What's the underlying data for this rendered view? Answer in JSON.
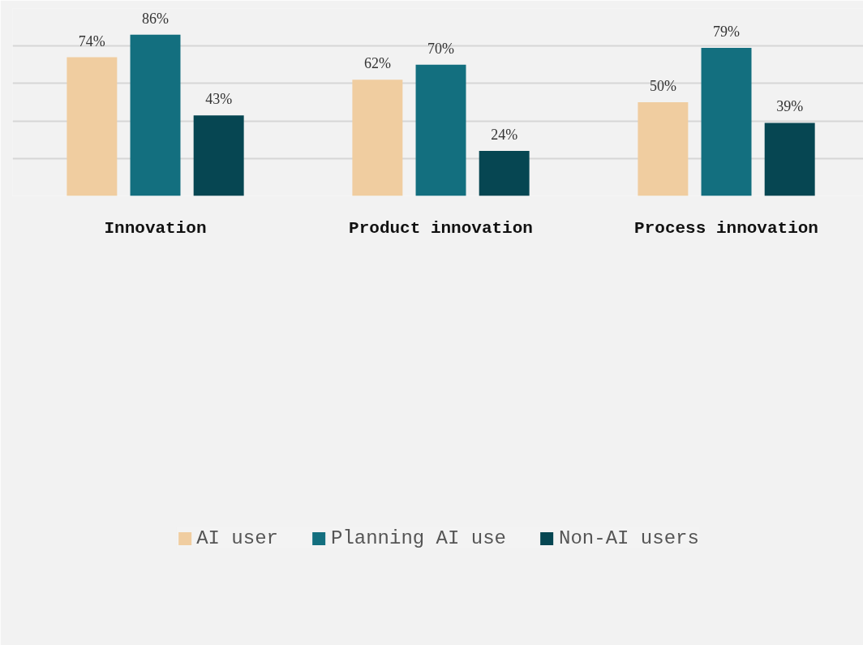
{
  "chart_data": {
    "type": "bar",
    "categories": [
      "Innovation",
      "Product innovation",
      "Process innovation"
    ],
    "series": [
      {
        "name": "AI user",
        "color": "#f0cda0",
        "values": [
          74,
          62,
          50
        ],
        "value_labels": [
          "74%",
          "62%",
          "50%"
        ]
      },
      {
        "name": "Planning AI use",
        "color": "#136f7f",
        "values": [
          86,
          70,
          79
        ],
        "value_labels": [
          "86%",
          "70%",
          "79%"
        ]
      },
      {
        "name": "Non-AI users",
        "color": "#064652",
        "values": [
          43,
          24,
          39
        ],
        "value_labels": [
          "43%",
          "24%",
          "39%"
        ]
      }
    ],
    "ylim": [
      0,
      100
    ],
    "yticks": [
      {
        "value": 0,
        "label": null
      },
      {
        "value": 20,
        "label": null
      },
      {
        "value": 40,
        "label": null
      },
      {
        "value": 60,
        "label": null
      },
      {
        "value": 80,
        "label": null
      },
      {
        "value": 100,
        "label": null
      }
    ],
    "grid": "y",
    "tick_labels": "x",
    "legend": "bottom"
  }
}
